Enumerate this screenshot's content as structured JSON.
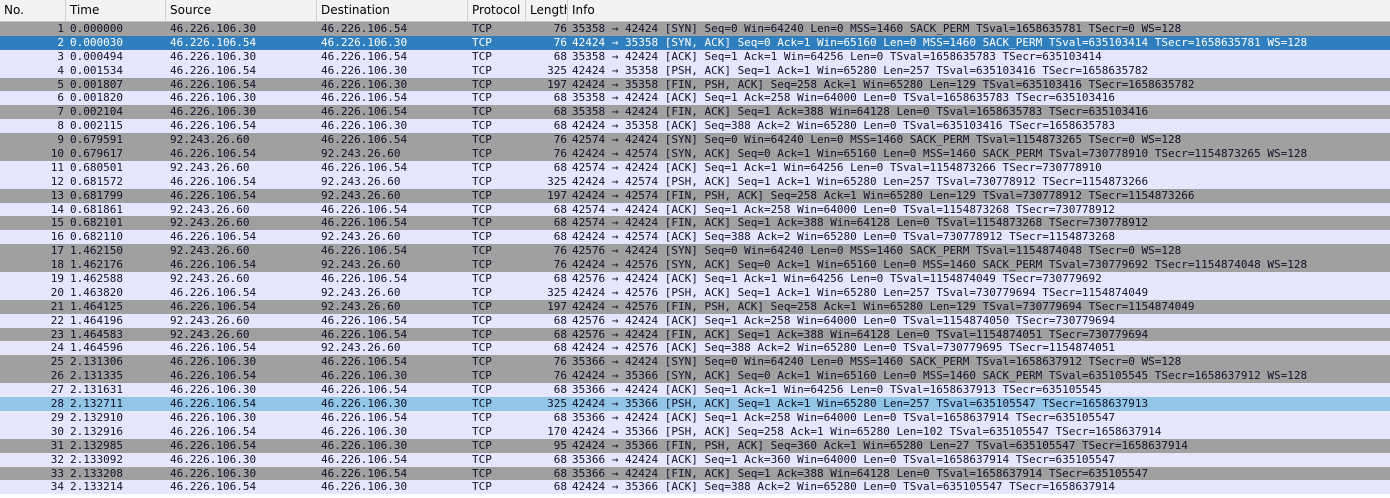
{
  "colors": {
    "syn_fin_bg": "#a0a0a0",
    "normal_bg": "#e7e6ff",
    "selected_bg": "#2f7fbf",
    "marked_bg": "#93c6e6",
    "text": "#12122a"
  },
  "columns": {
    "no": "No.",
    "time": "Time",
    "source": "Source",
    "destination": "Destination",
    "protocol": "Protocol",
    "length": "Length",
    "info": "Info"
  },
  "packets": [
    {
      "no": "1",
      "time": "0.000000",
      "source": "46.226.106.30",
      "destination": "46.226.106.54",
      "protocol": "TCP",
      "length": "76",
      "info": "35358 → 42424 [SYN] Seq=0 Win=64240 Len=0 MSS=1460 SACK_PERM TSval=1658635781 TSecr=0 WS=128",
      "style": "dark"
    },
    {
      "no": "2",
      "time": "0.000030",
      "source": "46.226.106.54",
      "destination": "46.226.106.30",
      "protocol": "TCP",
      "length": "76",
      "info": "42424 → 35358 [SYN, ACK] Seq=0 Ack=1 Win=65160 Len=0 MSS=1460 SACK_PERM TSval=635103414 TSecr=1658635781 WS=128",
      "style": "selected"
    },
    {
      "no": "3",
      "time": "0.000494",
      "source": "46.226.106.30",
      "destination": "46.226.106.54",
      "protocol": "TCP",
      "length": "68",
      "info": "35358 → 42424 [ACK] Seq=1 Ack=1 Win=64256 Len=0 TSval=1658635783 TSecr=635103414",
      "style": "light"
    },
    {
      "no": "4",
      "time": "0.001534",
      "source": "46.226.106.54",
      "destination": "46.226.106.30",
      "protocol": "TCP",
      "length": "325",
      "info": "42424 → 35358 [PSH, ACK] Seq=1 Ack=1 Win=65280 Len=257 TSval=635103416 TSecr=1658635782",
      "style": "light"
    },
    {
      "no": "5",
      "time": "0.001807",
      "source": "46.226.106.54",
      "destination": "46.226.106.30",
      "protocol": "TCP",
      "length": "197",
      "info": "42424 → 35358 [FIN, PSH, ACK] Seq=258 Ack=1 Win=65280 Len=129 TSval=635103416 TSecr=1658635782",
      "style": "dark"
    },
    {
      "no": "6",
      "time": "0.001820",
      "source": "46.226.106.30",
      "destination": "46.226.106.54",
      "protocol": "TCP",
      "length": "68",
      "info": "35358 → 42424 [ACK] Seq=1 Ack=258 Win=64000 Len=0 TSval=1658635783 TSecr=635103416",
      "style": "light"
    },
    {
      "no": "7",
      "time": "0.002104",
      "source": "46.226.106.30",
      "destination": "46.226.106.54",
      "protocol": "TCP",
      "length": "68",
      "info": "35358 → 42424 [FIN, ACK] Seq=1 Ack=388 Win=64128 Len=0 TSval=1658635783 TSecr=635103416",
      "style": "dark"
    },
    {
      "no": "8",
      "time": "0.002115",
      "source": "46.226.106.54",
      "destination": "46.226.106.30",
      "protocol": "TCP",
      "length": "68",
      "info": "42424 → 35358 [ACK] Seq=388 Ack=2 Win=65280 Len=0 TSval=635103416 TSecr=1658635783",
      "style": "light"
    },
    {
      "no": "9",
      "time": "0.679591",
      "source": "92.243.26.60",
      "destination": "46.226.106.54",
      "protocol": "TCP",
      "length": "76",
      "info": "42574 → 42424 [SYN] Seq=0 Win=64240 Len=0 MSS=1460 SACK_PERM TSval=1154873265 TSecr=0 WS=128",
      "style": "dark"
    },
    {
      "no": "10",
      "time": "0.679617",
      "source": "46.226.106.54",
      "destination": "92.243.26.60",
      "protocol": "TCP",
      "length": "76",
      "info": "42424 → 42574 [SYN, ACK] Seq=0 Ack=1 Win=65160 Len=0 MSS=1460 SACK_PERM TSval=730778910 TSecr=1154873265 WS=128",
      "style": "dark"
    },
    {
      "no": "11",
      "time": "0.680501",
      "source": "92.243.26.60",
      "destination": "46.226.106.54",
      "protocol": "TCP",
      "length": "68",
      "info": "42574 → 42424 [ACK] Seq=1 Ack=1 Win=64256 Len=0 TSval=1154873266 TSecr=730778910",
      "style": "light"
    },
    {
      "no": "12",
      "time": "0.681572",
      "source": "46.226.106.54",
      "destination": "92.243.26.60",
      "protocol": "TCP",
      "length": "325",
      "info": "42424 → 42574 [PSH, ACK] Seq=1 Ack=1 Win=65280 Len=257 TSval=730778912 TSecr=1154873266",
      "style": "light"
    },
    {
      "no": "13",
      "time": "0.681799",
      "source": "46.226.106.54",
      "destination": "92.243.26.60",
      "protocol": "TCP",
      "length": "197",
      "info": "42424 → 42574 [FIN, PSH, ACK] Seq=258 Ack=1 Win=65280 Len=129 TSval=730778912 TSecr=1154873266",
      "style": "dark"
    },
    {
      "no": "14",
      "time": "0.681861",
      "source": "92.243.26.60",
      "destination": "46.226.106.54",
      "protocol": "TCP",
      "length": "68",
      "info": "42574 → 42424 [ACK] Seq=1 Ack=258 Win=64000 Len=0 TSval=1154873268 TSecr=730778912",
      "style": "light"
    },
    {
      "no": "15",
      "time": "0.682101",
      "source": "92.243.26.60",
      "destination": "46.226.106.54",
      "protocol": "TCP",
      "length": "68",
      "info": "42574 → 42424 [FIN, ACK] Seq=1 Ack=388 Win=64128 Len=0 TSval=1154873268 TSecr=730778912",
      "style": "dark"
    },
    {
      "no": "16",
      "time": "0.682110",
      "source": "46.226.106.54",
      "destination": "92.243.26.60",
      "protocol": "TCP",
      "length": "68",
      "info": "42424 → 42574 [ACK] Seq=388 Ack=2 Win=65280 Len=0 TSval=730778912 TSecr=1154873268",
      "style": "light"
    },
    {
      "no": "17",
      "time": "1.462150",
      "source": "92.243.26.60",
      "destination": "46.226.106.54",
      "protocol": "TCP",
      "length": "76",
      "info": "42576 → 42424 [SYN] Seq=0 Win=64240 Len=0 MSS=1460 SACK_PERM TSval=1154874048 TSecr=0 WS=128",
      "style": "dark"
    },
    {
      "no": "18",
      "time": "1.462176",
      "source": "46.226.106.54",
      "destination": "92.243.26.60",
      "protocol": "TCP",
      "length": "76",
      "info": "42424 → 42576 [SYN, ACK] Seq=0 Ack=1 Win=65160 Len=0 MSS=1460 SACK_PERM TSval=730779692 TSecr=1154874048 WS=128",
      "style": "dark"
    },
    {
      "no": "19",
      "time": "1.462588",
      "source": "92.243.26.60",
      "destination": "46.226.106.54",
      "protocol": "TCP",
      "length": "68",
      "info": "42576 → 42424 [ACK] Seq=1 Ack=1 Win=64256 Len=0 TSval=1154874049 TSecr=730779692",
      "style": "light"
    },
    {
      "no": "20",
      "time": "1.463820",
      "source": "46.226.106.54",
      "destination": "92.243.26.60",
      "protocol": "TCP",
      "length": "325",
      "info": "42424 → 42576 [PSH, ACK] Seq=1 Ack=1 Win=65280 Len=257 TSval=730779694 TSecr=1154874049",
      "style": "light"
    },
    {
      "no": "21",
      "time": "1.464125",
      "source": "46.226.106.54",
      "destination": "92.243.26.60",
      "protocol": "TCP",
      "length": "197",
      "info": "42424 → 42576 [FIN, PSH, ACK] Seq=258 Ack=1 Win=65280 Len=129 TSval=730779694 TSecr=1154874049",
      "style": "dark"
    },
    {
      "no": "22",
      "time": "1.464196",
      "source": "92.243.26.60",
      "destination": "46.226.106.54",
      "protocol": "TCP",
      "length": "68",
      "info": "42576 → 42424 [ACK] Seq=1 Ack=258 Win=64000 Len=0 TSval=1154874050 TSecr=730779694",
      "style": "light"
    },
    {
      "no": "23",
      "time": "1.464583",
      "source": "92.243.26.60",
      "destination": "46.226.106.54",
      "protocol": "TCP",
      "length": "68",
      "info": "42576 → 42424 [FIN, ACK] Seq=1 Ack=388 Win=64128 Len=0 TSval=1154874051 TSecr=730779694",
      "style": "dark"
    },
    {
      "no": "24",
      "time": "1.464596",
      "source": "46.226.106.54",
      "destination": "92.243.26.60",
      "protocol": "TCP",
      "length": "68",
      "info": "42424 → 42576 [ACK] Seq=388 Ack=2 Win=65280 Len=0 TSval=730779695 TSecr=1154874051",
      "style": "light"
    },
    {
      "no": "25",
      "time": "2.131306",
      "source": "46.226.106.30",
      "destination": "46.226.106.54",
      "protocol": "TCP",
      "length": "76",
      "info": "35366 → 42424 [SYN] Seq=0 Win=64240 Len=0 MSS=1460 SACK_PERM TSval=1658637912 TSecr=0 WS=128",
      "style": "dark"
    },
    {
      "no": "26",
      "time": "2.131335",
      "source": "46.226.106.54",
      "destination": "46.226.106.30",
      "protocol": "TCP",
      "length": "76",
      "info": "42424 → 35366 [SYN, ACK] Seq=0 Ack=1 Win=65160 Len=0 MSS=1460 SACK_PERM TSval=635105545 TSecr=1658637912 WS=128",
      "style": "dark"
    },
    {
      "no": "27",
      "time": "2.131631",
      "source": "46.226.106.30",
      "destination": "46.226.106.54",
      "protocol": "TCP",
      "length": "68",
      "info": "35366 → 42424 [ACK] Seq=1 Ack=1 Win=64256 Len=0 TSval=1658637913 TSecr=635105545",
      "style": "light"
    },
    {
      "no": "28",
      "time": "2.132711",
      "source": "46.226.106.54",
      "destination": "46.226.106.30",
      "protocol": "TCP",
      "length": "325",
      "info": "42424 → 35366 [PSH, ACK] Seq=1 Ack=1 Win=65280 Len=257 TSval=635105547 TSecr=1658637913",
      "style": "marked"
    },
    {
      "no": "29",
      "time": "2.132910",
      "source": "46.226.106.30",
      "destination": "46.226.106.54",
      "protocol": "TCP",
      "length": "68",
      "info": "35366 → 42424 [ACK] Seq=1 Ack=258 Win=64000 Len=0 TSval=1658637914 TSecr=635105547",
      "style": "light"
    },
    {
      "no": "30",
      "time": "2.132916",
      "source": "46.226.106.54",
      "destination": "46.226.106.30",
      "protocol": "TCP",
      "length": "170",
      "info": "42424 → 35366 [PSH, ACK] Seq=258 Ack=1 Win=65280 Len=102 TSval=635105547 TSecr=1658637914",
      "style": "light"
    },
    {
      "no": "31",
      "time": "2.132985",
      "source": "46.226.106.54",
      "destination": "46.226.106.30",
      "protocol": "TCP",
      "length": "95",
      "info": "42424 → 35366 [FIN, PSH, ACK] Seq=360 Ack=1 Win=65280 Len=27 TSval=635105547 TSecr=1658637914",
      "style": "dark"
    },
    {
      "no": "32",
      "time": "2.133092",
      "source": "46.226.106.30",
      "destination": "46.226.106.54",
      "protocol": "TCP",
      "length": "68",
      "info": "35366 → 42424 [ACK] Seq=1 Ack=360 Win=64000 Len=0 TSval=1658637914 TSecr=635105547",
      "style": "light"
    },
    {
      "no": "33",
      "time": "2.133208",
      "source": "46.226.106.30",
      "destination": "46.226.106.54",
      "protocol": "TCP",
      "length": "68",
      "info": "35366 → 42424 [FIN, ACK] Seq=1 Ack=388 Win=64128 Len=0 TSval=1658637914 TSecr=635105547",
      "style": "dark"
    },
    {
      "no": "34",
      "time": "2.133214",
      "source": "46.226.106.54",
      "destination": "46.226.106.30",
      "protocol": "TCP",
      "length": "68",
      "info": "42424 → 35366 [ACK] Seq=388 Ack=2 Win=65280 Len=0 TSval=635105547 TSecr=1658637914",
      "style": "light"
    }
  ]
}
